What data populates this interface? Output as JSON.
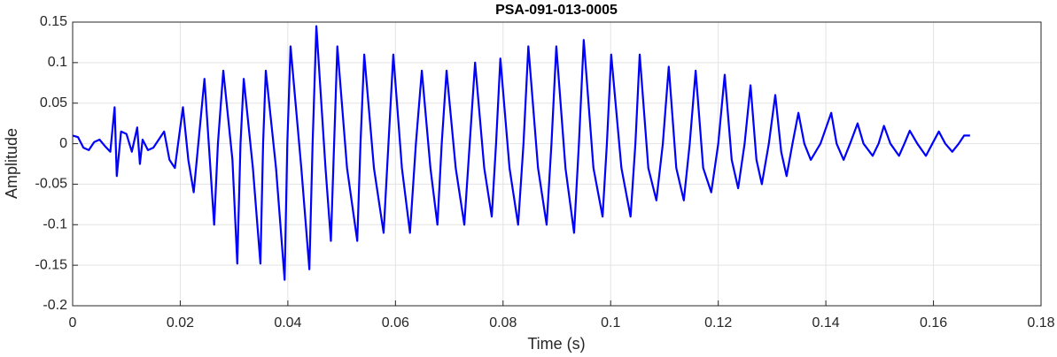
{
  "chart_data": {
    "type": "line",
    "title": "PSA-091-013-0005",
    "x_label": "Time (s)",
    "y_label": "Amplitude",
    "color": "#0000ff",
    "grid": true,
    "xlim": [
      0,
      0.18
    ],
    "xticks": [
      0,
      0.02,
      0.04,
      0.06,
      0.08,
      0.1,
      0.12,
      0.14,
      0.16,
      0.18
    ],
    "ylim": [
      -0.2,
      0.15
    ],
    "yticks": [
      -0.2,
      -0.15,
      -0.1,
      -0.05,
      0,
      0.05,
      0.1,
      0.15
    ],
    "x": [
      0,
      0.001,
      0.002,
      0.003,
      0.004,
      0.005,
      0.006,
      0.007,
      0.0078,
      0.0082,
      0.009,
      0.01,
      0.011,
      0.012,
      0.0125,
      0.013,
      0.014,
      0.015,
      0.016,
      0.017,
      0.018,
      0.019,
      0.0205,
      0.0215,
      0.0225,
      0.0245,
      0.0263,
      0.027,
      0.028,
      0.0297,
      0.0306,
      0.0312,
      0.0318,
      0.0335,
      0.0349,
      0.0354,
      0.0359,
      0.0378,
      0.0394,
      0.0399,
      0.0405,
      0.0425,
      0.044,
      0.0446,
      0.0453,
      0.047,
      0.048,
      0.0486,
      0.0492,
      0.051,
      0.0529,
      0.0535,
      0.0542,
      0.056,
      0.0578,
      0.0587,
      0.0596,
      0.0612,
      0.0627,
      0.0638,
      0.0649,
      0.0665,
      0.0678,
      0.0686,
      0.0695,
      0.0712,
      0.0728,
      0.0738,
      0.0748,
      0.0765,
      0.0779,
      0.0787,
      0.0795,
      0.0812,
      0.0828,
      0.0838,
      0.0847,
      0.0865,
      0.0881,
      0.089,
      0.0899,
      0.0916,
      0.0932,
      0.0941,
      0.095,
      0.0968,
      0.0985,
      0.0993,
      0.1001,
      0.102,
      0.1037,
      0.1046,
      0.1054,
      0.107,
      0.1085,
      0.1097,
      0.1108,
      0.1122,
      0.1136,
      0.1147,
      0.1158,
      0.1172,
      0.1187,
      0.12,
      0.1212,
      0.1225,
      0.1237,
      0.1249,
      0.126,
      0.1271,
      0.1281,
      0.1294,
      0.1306,
      0.1317,
      0.1327,
      0.1338,
      0.1349,
      0.136,
      0.1372,
      0.139,
      0.141,
      0.142,
      0.1433,
      0.1445,
      0.1459,
      0.147,
      0.1487,
      0.1498,
      0.1508,
      0.152,
      0.1536,
      0.1546,
      0.1556,
      0.157,
      0.1586,
      0.1598,
      0.161,
      0.1622,
      0.1635,
      0.1647,
      0.1657,
      0.1668
    ],
    "values": [
      0.01,
      0.008,
      -0.005,
      -0.008,
      0.002,
      0.005,
      -0.003,
      -0.01,
      0.045,
      -0.04,
      0.015,
      0.012,
      -0.01,
      0.02,
      -0.025,
      0.005,
      -0.008,
      -0.005,
      0.005,
      0.015,
      -0.02,
      -0.03,
      0.045,
      -0.02,
      -0.06,
      0.08,
      -0.1,
      0.0,
      0.09,
      -0.02,
      -0.148,
      0.0,
      0.08,
      -0.03,
      -0.148,
      0.0,
      0.09,
      -0.03,
      -0.168,
      0.0,
      0.12,
      -0.03,
      -0.155,
      0.0,
      0.145,
      -0.03,
      -0.12,
      0.0,
      0.12,
      -0.03,
      -0.12,
      0.0,
      0.11,
      -0.03,
      -0.11,
      0.0,
      0.11,
      -0.03,
      -0.11,
      0.0,
      0.09,
      -0.03,
      -0.1,
      0.0,
      0.09,
      -0.03,
      -0.1,
      0.0,
      0.1,
      -0.03,
      -0.09,
      0.0,
      0.105,
      -0.03,
      -0.1,
      0.0,
      0.12,
      -0.03,
      -0.1,
      0.0,
      0.12,
      -0.03,
      -0.11,
      0.0,
      0.128,
      -0.03,
      -0.09,
      0.0,
      0.11,
      -0.03,
      -0.09,
      0.0,
      0.11,
      -0.03,
      -0.07,
      0.0,
      0.095,
      -0.03,
      -0.07,
      0.0,
      0.09,
      -0.03,
      -0.06,
      0.0,
      0.085,
      -0.02,
      -0.055,
      0.0,
      0.072,
      -0.02,
      -0.05,
      0.0,
      0.06,
      -0.01,
      -0.04,
      0.0,
      0.038,
      0.0,
      -0.02,
      0.0,
      0.038,
      0.0,
      -0.02,
      0.0,
      0.025,
      0.0,
      -0.015,
      0.0,
      0.022,
      0.0,
      -0.015,
      0.0,
      0.016,
      0.0,
      -0.015,
      0.0,
      0.015,
      0.0,
      -0.01,
      0.0,
      0.01,
      0.01
    ]
  }
}
